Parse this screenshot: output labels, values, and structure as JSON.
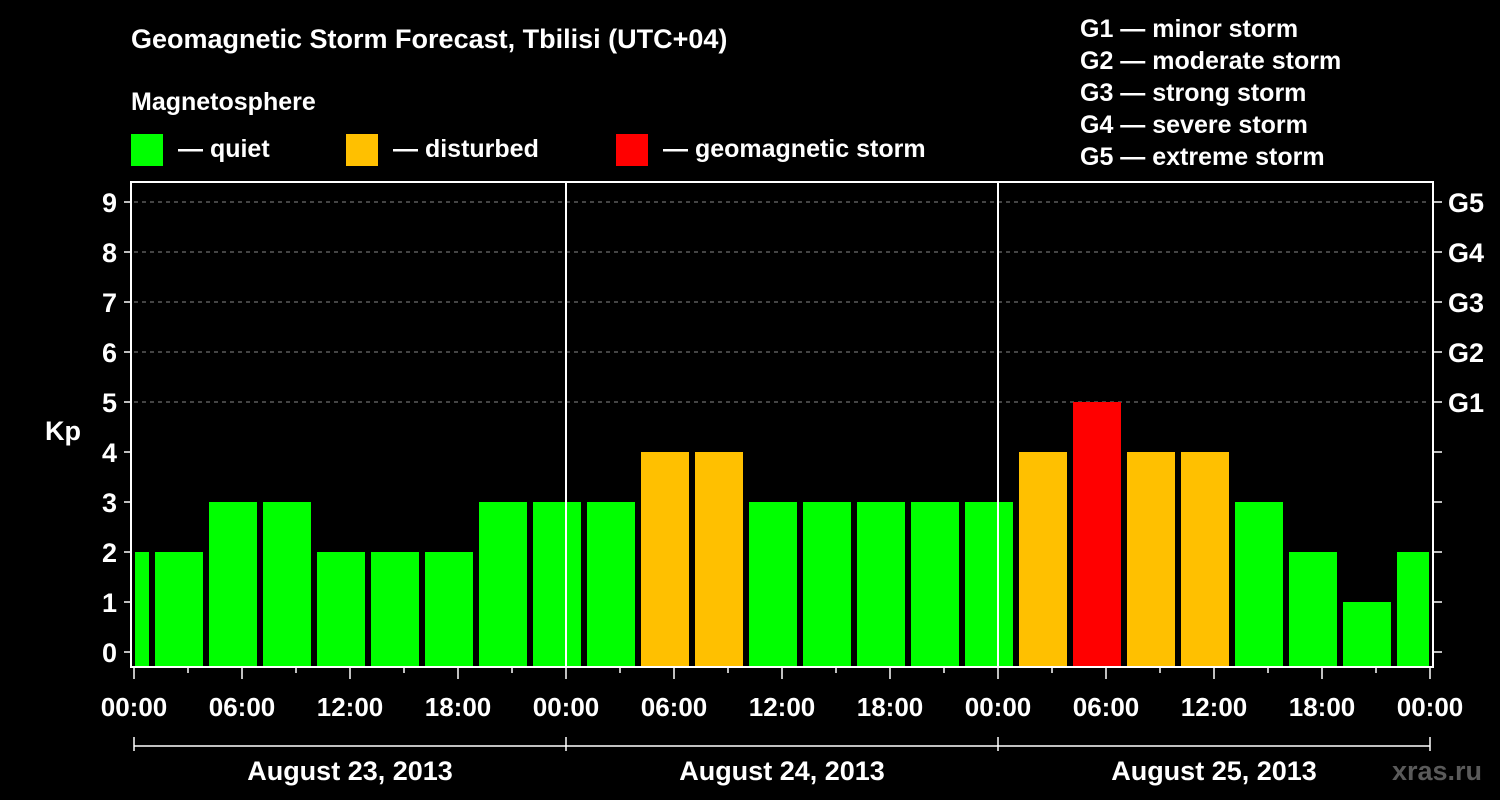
{
  "chart_data": {
    "type": "bar",
    "title": "Geomagnetic Storm Forecast, Tbilisi (UTC+04)",
    "subtitle": "Magnetosphere",
    "ylabel": "Kp",
    "ylim": [
      0,
      9
    ],
    "yticks": [
      "0",
      "1",
      "2",
      "3",
      "4",
      "5",
      "6",
      "7",
      "8",
      "9"
    ],
    "right_axis_labels": [
      {
        "kp": 5,
        "label": "G1"
      },
      {
        "kp": 6,
        "label": "G2"
      },
      {
        "kp": 7,
        "label": "G3"
      },
      {
        "kp": 8,
        "label": "G4"
      },
      {
        "kp": 9,
        "label": "G5"
      }
    ],
    "storm_levels": [
      "G1 — minor storm",
      "G2 — moderate storm",
      "G3 — strong storm",
      "G4 — severe storm",
      "G5 — extreme storm"
    ],
    "legend": [
      {
        "label": "— quiet",
        "color": "#00ff00"
      },
      {
        "label": "— disturbed",
        "color": "#ffc000"
      },
      {
        "label": "— geomagnetic storm",
        "color": "#ff0000"
      }
    ],
    "x_hours_range": [
      0,
      72
    ],
    "x_tick_labels": [
      "00:00",
      "06:00",
      "12:00",
      "18:00",
      "00:00",
      "06:00",
      "12:00",
      "18:00",
      "00:00",
      "06:00",
      "12:00",
      "18:00",
      "00:00"
    ],
    "days": [
      "August 23, 2013",
      "August 24, 2013",
      "August 25, 2013"
    ],
    "bars": [
      {
        "start_hour": 0,
        "end_hour": 1,
        "kp": 2,
        "status": "quiet"
      },
      {
        "start_hour": 1,
        "end_hour": 4,
        "kp": 2,
        "status": "quiet"
      },
      {
        "start_hour": 4,
        "end_hour": 7,
        "kp": 3,
        "status": "quiet"
      },
      {
        "start_hour": 7,
        "end_hour": 10,
        "kp": 3,
        "status": "quiet"
      },
      {
        "start_hour": 10,
        "end_hour": 13,
        "kp": 2,
        "status": "quiet"
      },
      {
        "start_hour": 13,
        "end_hour": 16,
        "kp": 2,
        "status": "quiet"
      },
      {
        "start_hour": 16,
        "end_hour": 19,
        "kp": 2,
        "status": "quiet"
      },
      {
        "start_hour": 19,
        "end_hour": 22,
        "kp": 3,
        "status": "quiet"
      },
      {
        "start_hour": 22,
        "end_hour": 25,
        "kp": 3,
        "status": "quiet"
      },
      {
        "start_hour": 25,
        "end_hour": 28,
        "kp": 3,
        "status": "quiet"
      },
      {
        "start_hour": 28,
        "end_hour": 31,
        "kp": 4,
        "status": "disturbed"
      },
      {
        "start_hour": 31,
        "end_hour": 34,
        "kp": 4,
        "status": "disturbed"
      },
      {
        "start_hour": 34,
        "end_hour": 37,
        "kp": 3,
        "status": "quiet"
      },
      {
        "start_hour": 37,
        "end_hour": 40,
        "kp": 3,
        "status": "quiet"
      },
      {
        "start_hour": 40,
        "end_hour": 43,
        "kp": 3,
        "status": "quiet"
      },
      {
        "start_hour": 43,
        "end_hour": 46,
        "kp": 3,
        "status": "quiet"
      },
      {
        "start_hour": 46,
        "end_hour": 49,
        "kp": 3,
        "status": "quiet"
      },
      {
        "start_hour": 49,
        "end_hour": 52,
        "kp": 4,
        "status": "disturbed"
      },
      {
        "start_hour": 52,
        "end_hour": 55,
        "kp": 5,
        "status": "storm"
      },
      {
        "start_hour": 55,
        "end_hour": 58,
        "kp": 4,
        "status": "disturbed"
      },
      {
        "start_hour": 58,
        "end_hour": 61,
        "kp": 4,
        "status": "disturbed"
      },
      {
        "start_hour": 61,
        "end_hour": 64,
        "kp": 3,
        "status": "quiet"
      },
      {
        "start_hour": 64,
        "end_hour": 67,
        "kp": 2,
        "status": "quiet"
      },
      {
        "start_hour": 67,
        "end_hour": 70,
        "kp": 1,
        "status": "quiet"
      },
      {
        "start_hour": 70,
        "end_hour": 72,
        "kp": 2,
        "status": "quiet"
      }
    ],
    "colors": {
      "quiet": "#00ff00",
      "disturbed": "#ffc000",
      "storm": "#ff0000"
    },
    "watermark": "xras.ru"
  }
}
